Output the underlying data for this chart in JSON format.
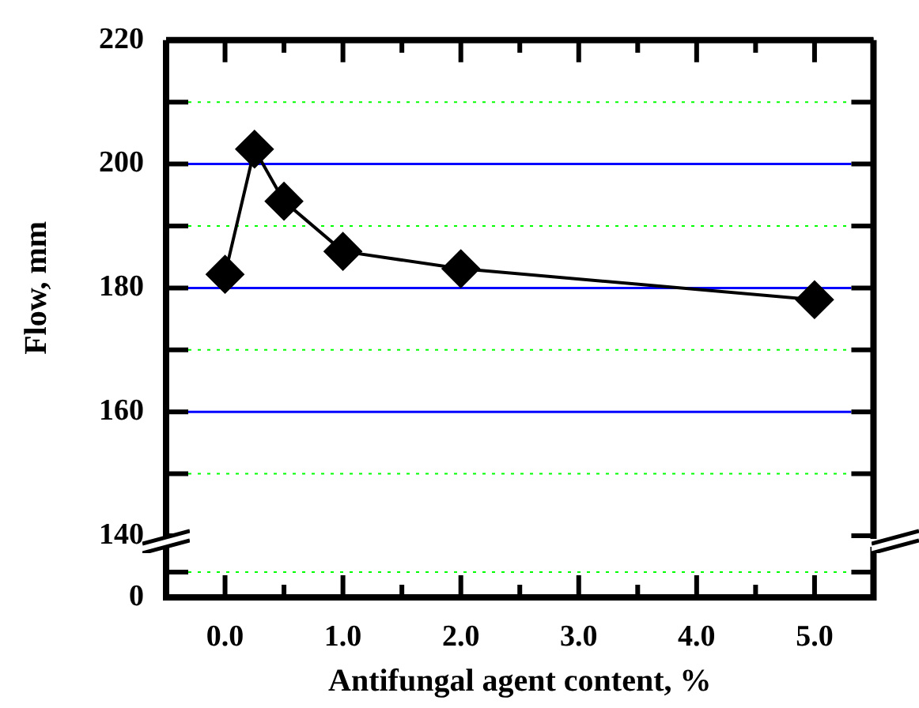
{
  "chart_data": {
    "type": "line",
    "ylabel": "Flow, mm",
    "xlabel": "Antifungal agent content, %",
    "x": [
      0,
      0.25,
      0.5,
      1,
      2,
      5
    ],
    "series": [
      {
        "color": "#000000",
        "values": [
          182.2,
          202.4,
          194,
          185.9,
          183.1,
          178.1
        ]
      }
    ],
    "marker": "diamond",
    "line_style": "solid",
    "xlim": [
      -0.5,
      5.5
    ],
    "xticks": [
      {
        "value": 0,
        "label": "0.0"
      },
      {
        "value": 0.5,
        "label": null
      },
      {
        "value": 1,
        "label": "1.0"
      },
      {
        "value": 1.5,
        "label": null
      },
      {
        "value": 2,
        "label": "2.0"
      },
      {
        "value": 2.5,
        "label": null
      },
      {
        "value": 3,
        "label": "3.0"
      },
      {
        "value": 3.5,
        "label": null
      },
      {
        "value": 4,
        "label": "4.0"
      },
      {
        "value": 4.5,
        "label": null
      },
      {
        "value": 5,
        "label": "5.0"
      }
    ],
    "ylim": [
      140,
      220
    ],
    "yticks": [
      140,
      {
        "value": 150,
        "label": null
      },
      160,
      {
        "value": 170,
        "label": null
      },
      180,
      {
        "value": 190,
        "label": null
      },
      200,
      {
        "value": 210,
        "label": null
      },
      220
    ],
    "annotations": [
      "0"
    ],
    "grid": "y"
  }
}
